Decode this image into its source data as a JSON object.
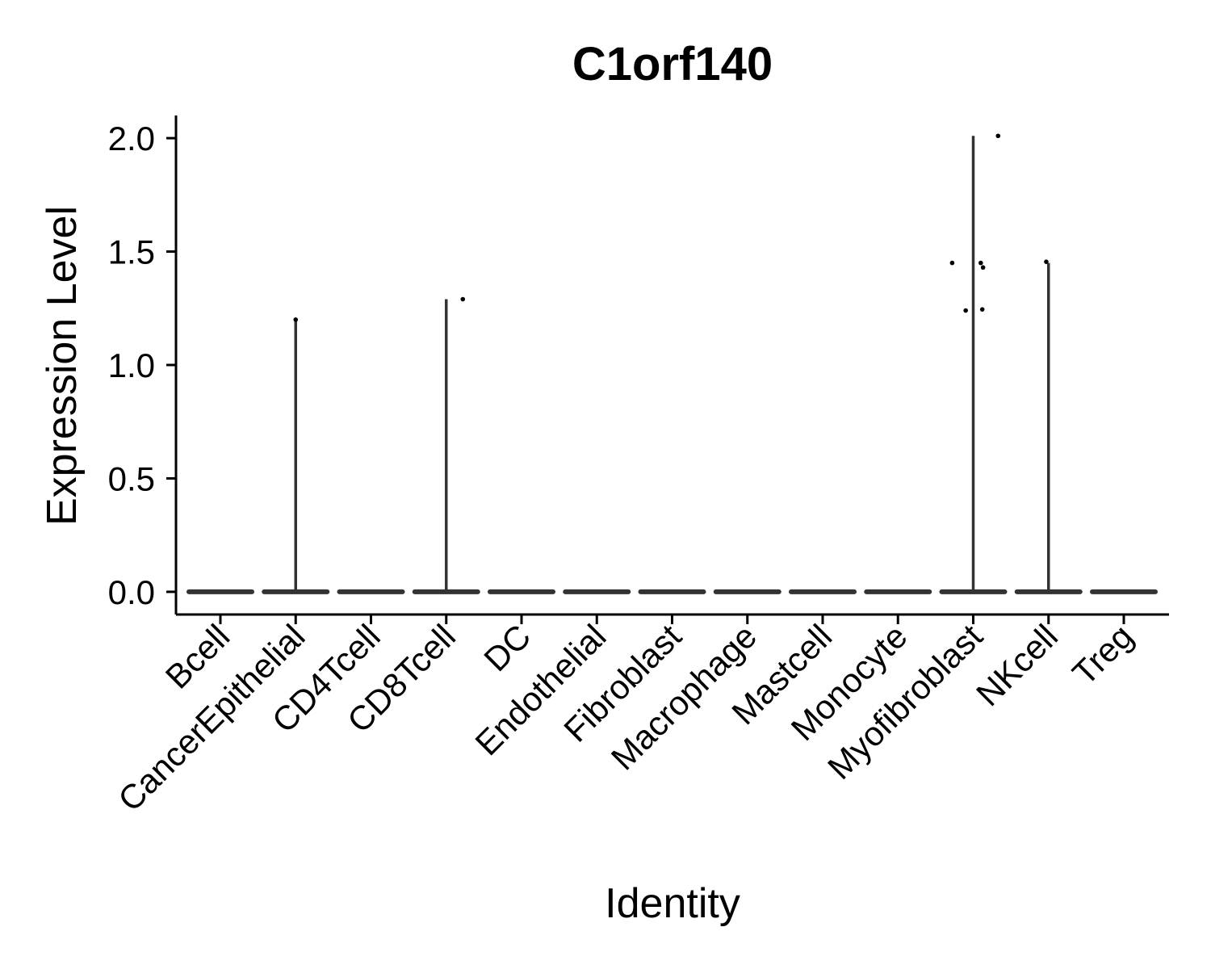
{
  "chart_data": {
    "type": "violin",
    "title": "C1orf140",
    "xlabel": "Identity",
    "ylabel": "Expression Level",
    "ylim": [
      -0.1,
      2.1
    ],
    "yticks": [
      "0.0",
      "0.5",
      "1.0",
      "1.5",
      "2.0"
    ],
    "ytick_values": [
      0,
      0.5,
      1.0,
      1.5,
      2.0
    ],
    "categories": [
      "Bcell",
      "CancerEpithelial",
      "CD4Tcell",
      "CD8Tcell",
      "DC",
      "Endothelial",
      "Fibroblast",
      "Macrophage",
      "Mastcell",
      "Monocyte",
      "Myofibroblast",
      "NKcell",
      "Treg"
    ],
    "violin_max": [
      0,
      1.2,
      0,
      1.29,
      0,
      0,
      0,
      0,
      0,
      0,
      2.01,
      1.45,
      0
    ],
    "points": [
      {
        "category": "CancerEpithelial",
        "jitter": 0.0,
        "value": 1.2
      },
      {
        "category": "CD8Tcell",
        "jitter": 0.22,
        "value": 1.29
      },
      {
        "category": "Myofibroblast",
        "jitter": 0.33,
        "value": 2.01
      },
      {
        "category": "Myofibroblast",
        "jitter": -0.28,
        "value": 1.45
      },
      {
        "category": "Myofibroblast",
        "jitter": 0.1,
        "value": 1.45
      },
      {
        "category": "Myofibroblast",
        "jitter": 0.13,
        "value": 1.43
      },
      {
        "category": "Myofibroblast",
        "jitter": -0.1,
        "value": 1.24
      },
      {
        "category": "Myofibroblast",
        "jitter": 0.12,
        "value": 1.245
      },
      {
        "category": "NKcell",
        "jitter": -0.03,
        "value": 1.455
      }
    ],
    "colors": {
      "axis": "#000000",
      "violin": "#333333",
      "point": "#000000"
    }
  }
}
